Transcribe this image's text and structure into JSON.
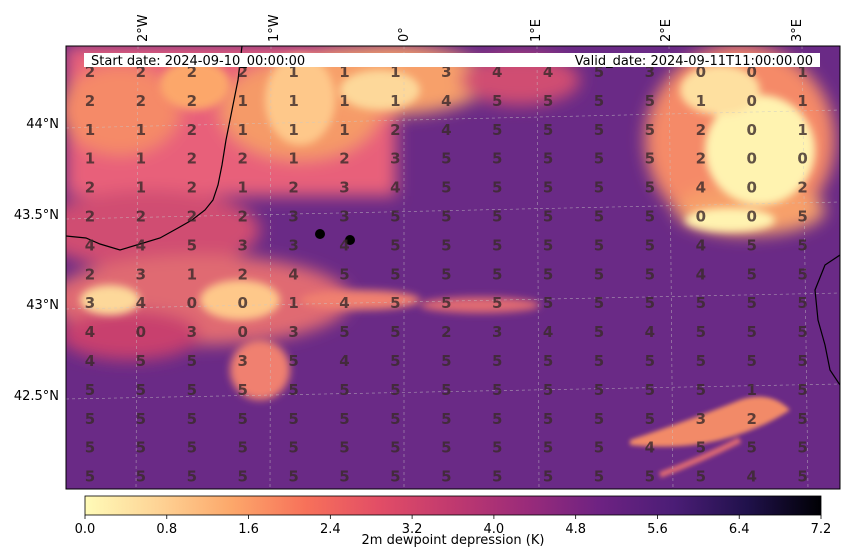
{
  "header": {
    "start_date": "Start date: 2024-09-10_00:00:00",
    "valid_date": "Valid_date: 2024-09-11T11:00:00.00"
  },
  "axes": {
    "lon_labels": [
      "2°W",
      "1°W",
      "0°",
      "1°E",
      "2°E",
      "3°E"
    ],
    "lat_labels": [
      "44°N",
      "43.5°N",
      "43°N",
      "42.5°N"
    ]
  },
  "colorbar": {
    "label": "2m dewpoint depression (K)",
    "ticks": [
      "0.0",
      "0.8",
      "1.6",
      "2.4",
      "3.2",
      "4.0",
      "4.8",
      "5.6",
      "6.4",
      "7.2"
    ],
    "min": 0,
    "max": 7.2,
    "colormap": "magma_r"
  },
  "grid_values": [
    [
      2,
      2,
      2,
      2,
      1,
      1,
      1,
      3,
      4,
      4,
      5,
      3,
      0,
      0,
      1
    ],
    [
      2,
      2,
      2,
      1,
      1,
      1,
      1,
      4,
      5,
      5,
      5,
      5,
      1,
      0,
      1
    ],
    [
      1,
      1,
      2,
      1,
      1,
      1,
      2,
      4,
      5,
      5,
      5,
      5,
      2,
      0,
      1
    ],
    [
      1,
      1,
      2,
      2,
      1,
      2,
      3,
      5,
      5,
      5,
      5,
      5,
      2,
      0,
      0
    ],
    [
      2,
      1,
      2,
      1,
      2,
      3,
      4,
      5,
      5,
      5,
      5,
      5,
      4,
      0,
      2
    ],
    [
      2,
      2,
      2,
      2,
      3,
      3,
      5,
      5,
      5,
      5,
      5,
      5,
      0,
      0,
      5
    ],
    [
      4,
      4,
      5,
      3,
      3,
      4,
      5,
      5,
      5,
      5,
      5,
      5,
      4,
      5,
      5
    ],
    [
      2,
      3,
      1,
      2,
      4,
      5,
      5,
      5,
      5,
      5,
      5,
      5,
      4,
      5,
      5
    ],
    [
      3,
      4,
      0,
      0,
      1,
      4,
      5,
      5,
      5,
      5,
      5,
      5,
      5,
      5,
      5
    ],
    [
      4,
      0,
      3,
      0,
      3,
      5,
      5,
      2,
      3,
      4,
      5,
      4,
      5,
      5,
      5
    ],
    [
      4,
      5,
      5,
      3,
      5,
      4,
      5,
      5,
      5,
      5,
      5,
      5,
      5,
      5,
      5
    ],
    [
      5,
      5,
      5,
      5,
      5,
      5,
      5,
      5,
      5,
      5,
      5,
      5,
      5,
      1,
      5
    ],
    [
      5,
      5,
      5,
      5,
      5,
      5,
      5,
      5,
      5,
      5,
      5,
      5,
      3,
      2,
      5
    ],
    [
      5,
      5,
      5,
      5,
      5,
      5,
      5,
      5,
      5,
      5,
      5,
      4,
      5,
      5,
      5
    ],
    [
      5,
      5,
      5,
      5,
      5,
      5,
      5,
      5,
      5,
      5,
      5,
      5,
      5,
      4,
      5
    ]
  ],
  "station_markers": 2
}
